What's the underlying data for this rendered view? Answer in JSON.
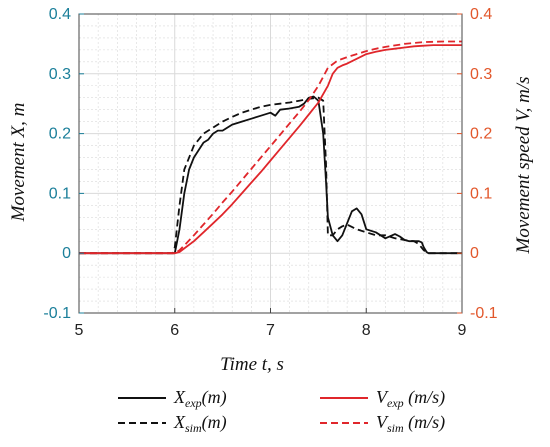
{
  "chart_data": {
    "type": "line",
    "title": "",
    "xlabel": "Time t, s",
    "ylabel_left": "Movement X, m",
    "ylabel_right": "Movement speed V, m/s",
    "xlim": [
      5,
      9
    ],
    "ylim_left": [
      -0.1,
      0.4
    ],
    "ylim_right": [
      -0.1,
      0.4
    ],
    "x_ticks": [
      "5",
      "6",
      "7",
      "8",
      "9"
    ],
    "y_ticks_left": [
      "0.4",
      "0.3",
      "0.2",
      "0.1",
      "0",
      "-0.1"
    ],
    "y_ticks_right": [
      "0.4",
      "0.3",
      "0.2",
      "0.1",
      "0",
      "-0.1"
    ],
    "grid": true,
    "legend_position": "bottom",
    "colors": {
      "left_axis": "#1b7f9a",
      "right_axis": "#e2572b",
      "x_series": "#111111",
      "v_series": "#e0262b",
      "grid": "#d9d9d9"
    },
    "legend": [
      {
        "series": "x_exp",
        "main": "X",
        "sub": "exp",
        "suffix": "(m)"
      },
      {
        "series": "v_exp",
        "main": "V",
        "sub": "exp",
        "suffix": " (m/s)"
      },
      {
        "series": "x_sim",
        "main": "X",
        "sub": "sim",
        "suffix": "(m)"
      },
      {
        "series": "v_sim",
        "main": "V",
        "sub": "sim",
        "suffix": " (m/s)"
      }
    ],
    "series": [
      {
        "id": "x_exp",
        "name": "Xexp(m)",
        "axis": "left",
        "color": "#111111",
        "dash": "solid",
        "x": [
          5.0,
          6.0,
          6.05,
          6.1,
          6.15,
          6.2,
          6.3,
          6.35,
          6.4,
          6.45,
          6.5,
          6.6,
          6.7,
          6.8,
          6.9,
          7.0,
          7.05,
          7.1,
          7.2,
          7.3,
          7.35,
          7.4,
          7.45,
          7.5,
          7.55,
          7.58,
          7.6,
          7.65,
          7.7,
          7.75,
          7.8,
          7.85,
          7.9,
          7.95,
          8.0,
          8.1,
          8.2,
          8.3,
          8.35,
          8.4,
          8.45,
          8.5,
          8.55,
          8.58,
          8.6,
          8.63,
          8.65,
          9.0
        ],
        "y": [
          0.0,
          0.0,
          0.04,
          0.1,
          0.14,
          0.16,
          0.185,
          0.19,
          0.2,
          0.205,
          0.205,
          0.215,
          0.22,
          0.225,
          0.23,
          0.235,
          0.23,
          0.24,
          0.242,
          0.245,
          0.25,
          0.26,
          0.262,
          0.255,
          0.2,
          0.12,
          0.06,
          0.03,
          0.02,
          0.03,
          0.05,
          0.07,
          0.075,
          0.065,
          0.04,
          0.035,
          0.025,
          0.032,
          0.028,
          0.022,
          0.02,
          0.02,
          0.02,
          0.018,
          0.01,
          0.002,
          0.0,
          0.0
        ]
      },
      {
        "id": "x_sim",
        "name": "Xsim(m)",
        "axis": "left",
        "color": "#111111",
        "dash": "dashed",
        "x": [
          5.0,
          5.98,
          6.0,
          6.05,
          6.1,
          6.2,
          6.3,
          6.4,
          6.5,
          6.6,
          6.7,
          6.8,
          6.9,
          7.0,
          7.1,
          7.2,
          7.3,
          7.4,
          7.5,
          7.55,
          7.58,
          7.6,
          7.65,
          7.7,
          7.75,
          7.8,
          7.9,
          8.0,
          8.1,
          8.2,
          8.3,
          8.4,
          8.5,
          8.55,
          8.6,
          8.65,
          9.0
        ],
        "y": [
          0.0,
          0.0,
          0.01,
          0.08,
          0.14,
          0.18,
          0.2,
          0.21,
          0.22,
          0.228,
          0.235,
          0.24,
          0.245,
          0.248,
          0.25,
          0.252,
          0.255,
          0.258,
          0.26,
          0.255,
          0.15,
          0.03,
          0.03,
          0.04,
          0.045,
          0.048,
          0.04,
          0.035,
          0.03,
          0.03,
          0.025,
          0.022,
          0.02,
          0.015,
          0.005,
          0.0,
          0.0
        ]
      },
      {
        "id": "v_exp",
        "name": "Vexp (m/s)",
        "axis": "right",
        "color": "#e0262b",
        "dash": "solid",
        "x": [
          5.0,
          6.0,
          6.05,
          6.1,
          6.2,
          6.3,
          6.4,
          6.5,
          6.6,
          6.7,
          6.8,
          6.9,
          7.0,
          7.1,
          7.2,
          7.3,
          7.4,
          7.5,
          7.6,
          7.65,
          7.7,
          7.75,
          7.8,
          7.9,
          8.0,
          8.1,
          8.2,
          8.3,
          8.4,
          8.5,
          8.6,
          8.7,
          8.8,
          9.0
        ],
        "y": [
          0.0,
          0.0,
          0.002,
          0.008,
          0.02,
          0.035,
          0.05,
          0.065,
          0.082,
          0.1,
          0.118,
          0.136,
          0.155,
          0.174,
          0.193,
          0.212,
          0.232,
          0.252,
          0.28,
          0.3,
          0.31,
          0.314,
          0.317,
          0.325,
          0.333,
          0.337,
          0.34,
          0.342,
          0.344,
          0.346,
          0.347,
          0.348,
          0.348,
          0.348
        ]
      },
      {
        "id": "v_sim",
        "name": "Vsim (m/s)",
        "axis": "right",
        "color": "#e0262b",
        "dash": "dashed",
        "x": [
          5.0,
          6.0,
          6.05,
          6.1,
          6.2,
          6.3,
          6.4,
          6.5,
          6.6,
          6.7,
          6.8,
          6.9,
          7.0,
          7.1,
          7.2,
          7.3,
          7.4,
          7.5,
          7.55,
          7.6,
          7.7,
          7.8,
          7.9,
          8.0,
          8.1,
          8.2,
          8.4,
          8.6,
          8.8,
          9.0
        ],
        "y": [
          0.0,
          0.0,
          0.005,
          0.013,
          0.03,
          0.048,
          0.066,
          0.085,
          0.103,
          0.122,
          0.141,
          0.16,
          0.179,
          0.198,
          0.217,
          0.236,
          0.256,
          0.28,
          0.295,
          0.31,
          0.322,
          0.328,
          0.333,
          0.338,
          0.342,
          0.345,
          0.35,
          0.353,
          0.354,
          0.354
        ]
      }
    ]
  }
}
